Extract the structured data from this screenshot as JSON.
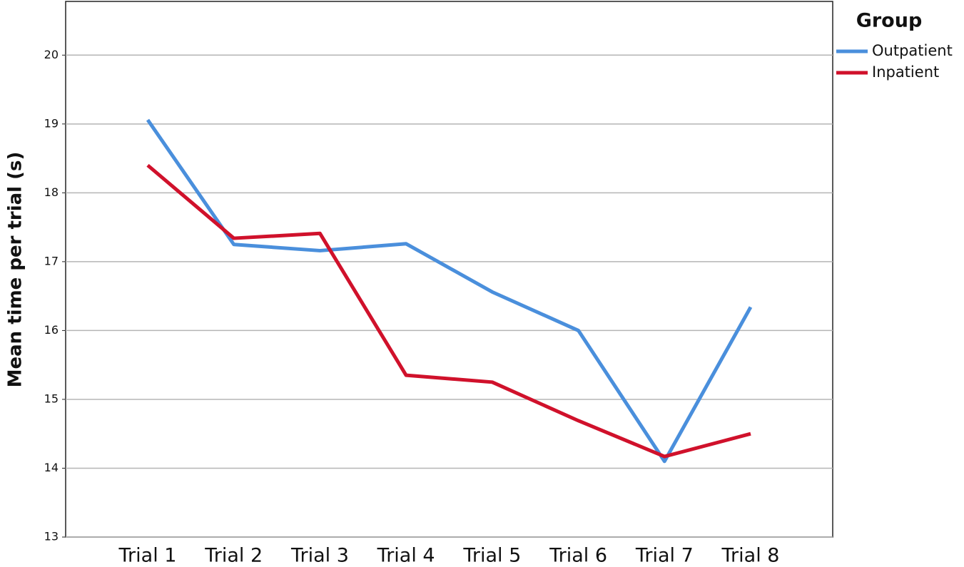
{
  "chart_data": {
    "type": "line",
    "y_label": "Mean time per trial (s)",
    "legend_title": "Group",
    "legend": "right",
    "categories": [
      "Trial 1",
      "Trial 2",
      "Trial 3",
      "Trial 4",
      "Trial 5",
      "Trial 6",
      "Trial 7",
      "Trial 8"
    ],
    "series": [
      {
        "name": "Outpatient",
        "color": "#4a8fdc",
        "values": [
          19.06,
          17.25,
          17.16,
          17.26,
          16.56,
          16.0,
          14.1,
          16.34
        ]
      },
      {
        "name": "Inpatient",
        "color": "#d0112b",
        "values": [
          18.4,
          17.34,
          17.41,
          15.35,
          15.25,
          14.69,
          14.17,
          14.5
        ]
      }
    ],
    "ylim": [
      13,
      20.78
    ],
    "yticks": [
      13,
      14,
      15,
      16,
      17,
      18,
      19,
      20
    ],
    "grid": true
  }
}
